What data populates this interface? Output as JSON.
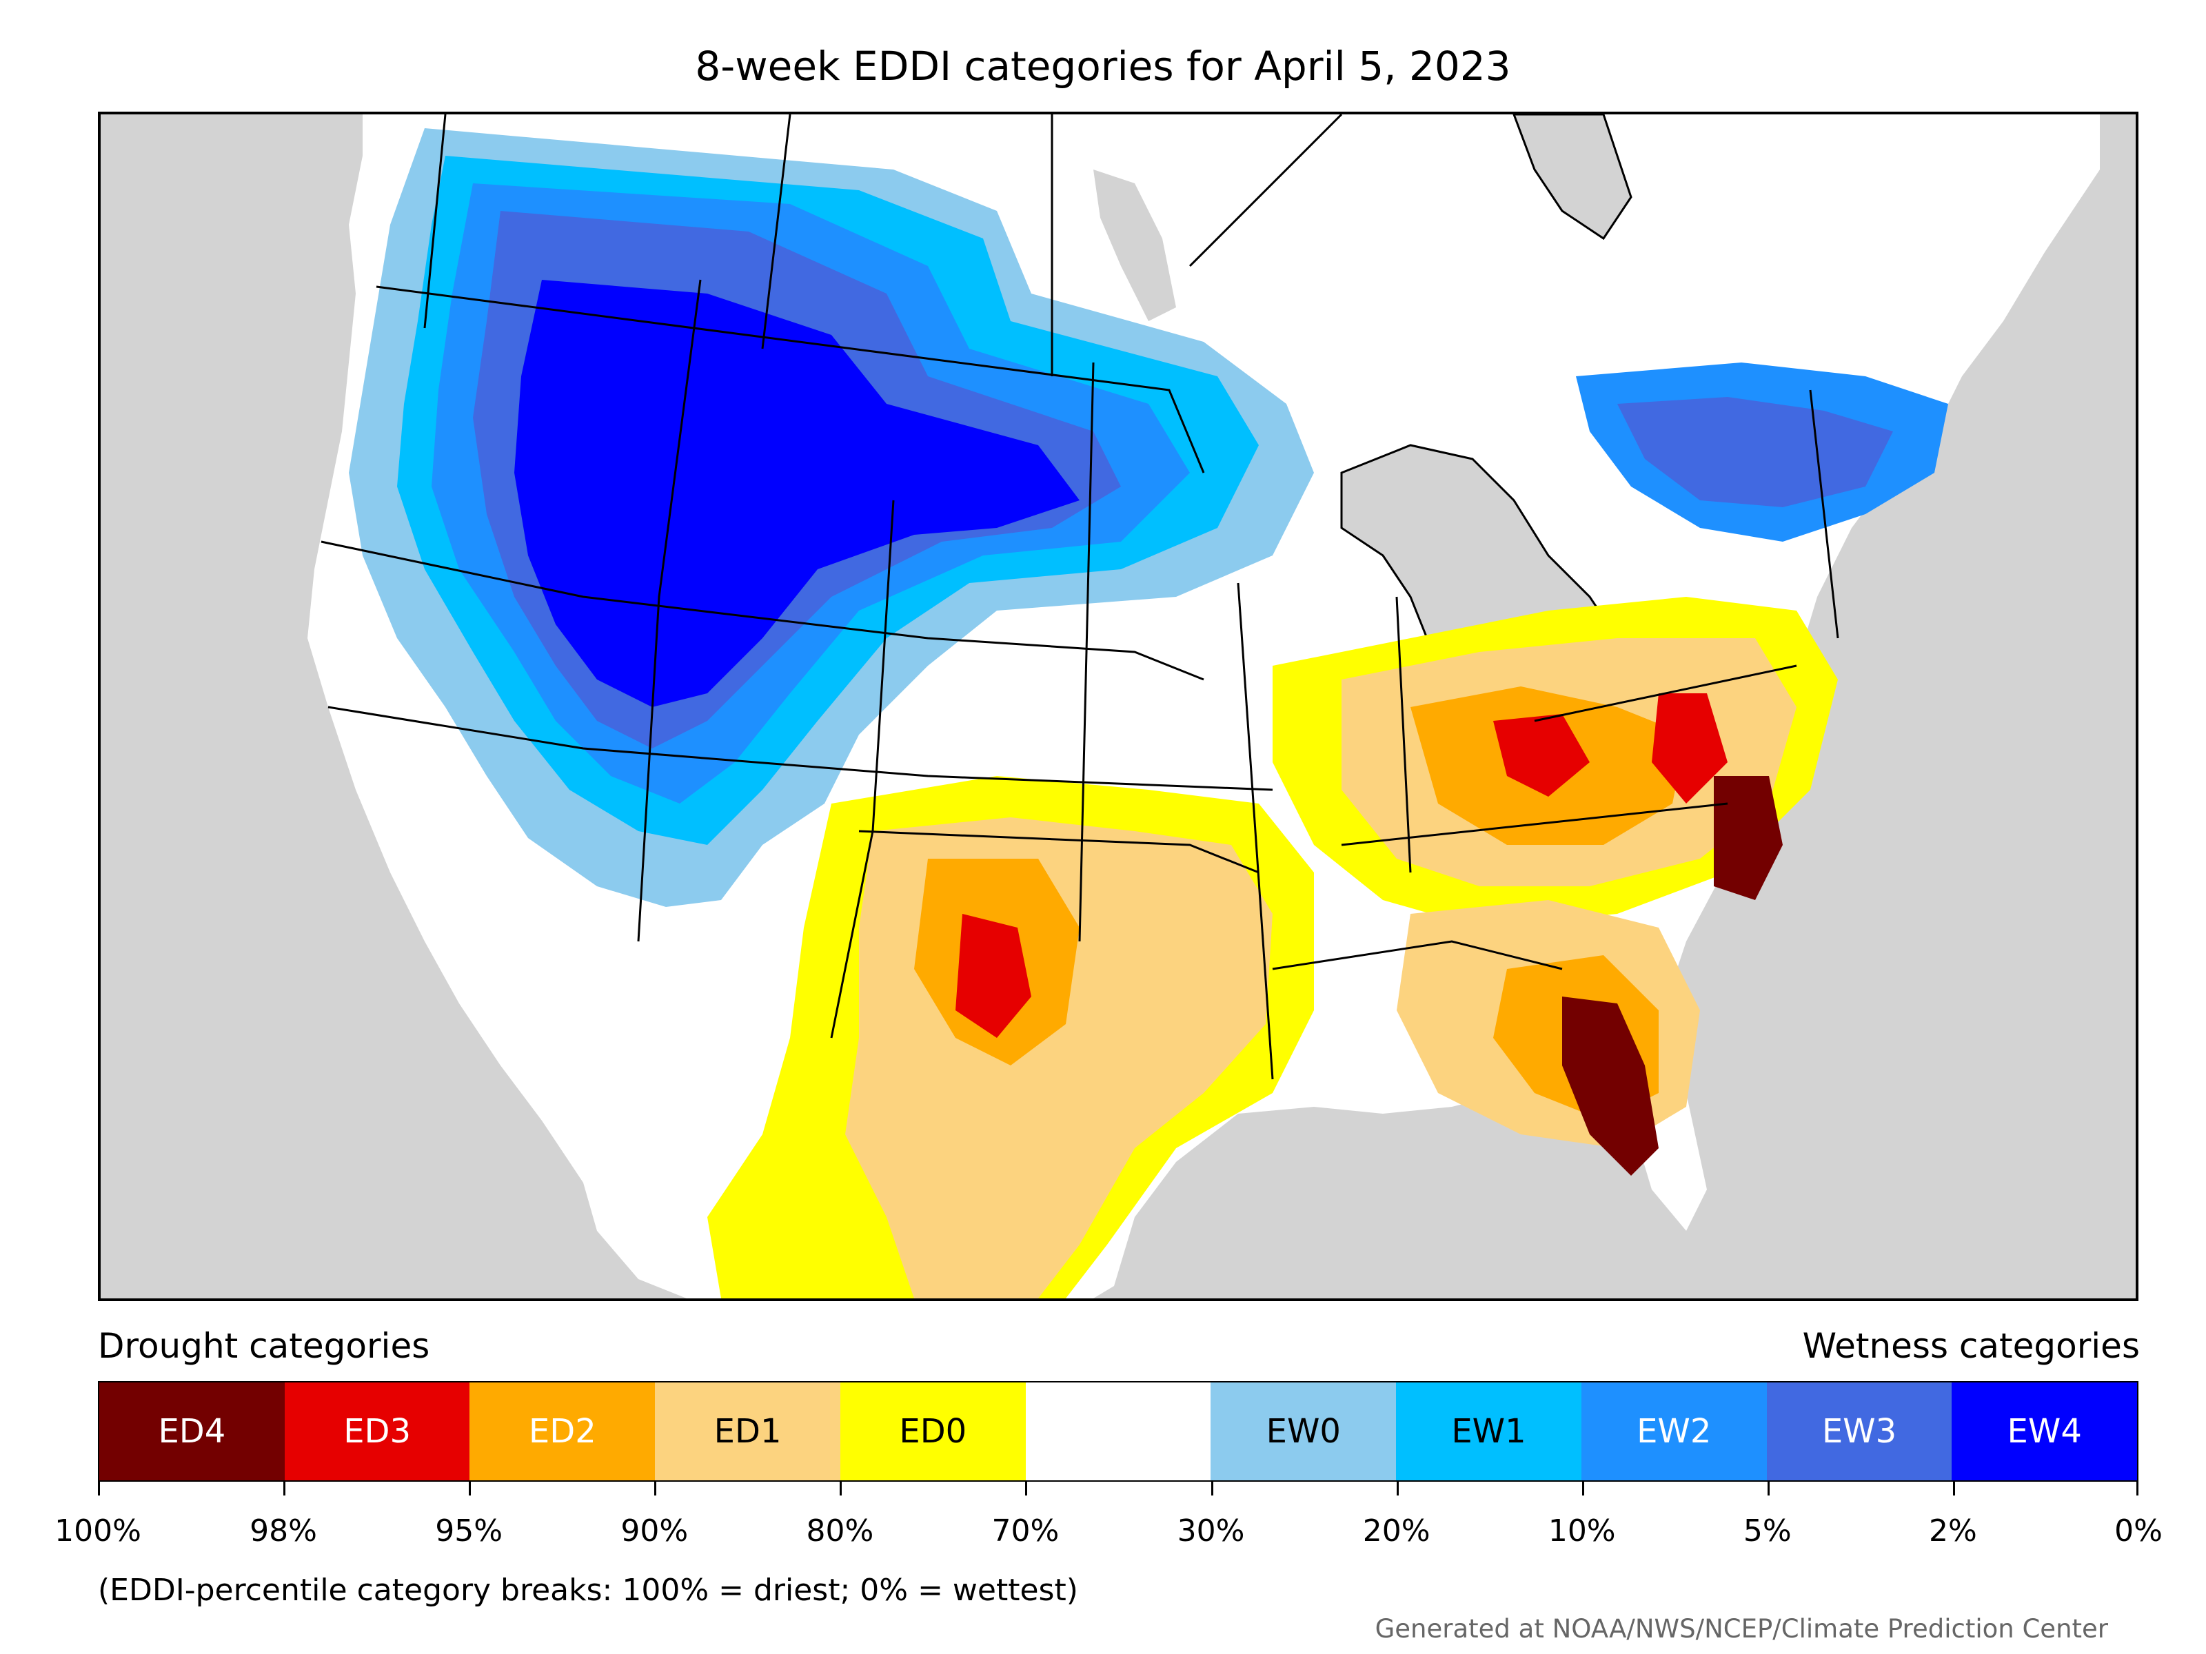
{
  "title": "8-week EDDI categories for April 5, 2023",
  "legend": {
    "left_heading": "Drought categories",
    "right_heading": "Wetness categories",
    "categories": [
      {
        "label": "ED4",
        "color": "#730000",
        "text_color": "#ffffff"
      },
      {
        "label": "ED3",
        "color": "#e60000",
        "text_color": "#ffffff"
      },
      {
        "label": "ED2",
        "color": "#ffaa00",
        "text_color": "#ffffff"
      },
      {
        "label": "ED1",
        "color": "#fcd37f",
        "text_color": "#000000"
      },
      {
        "label": "ED0",
        "color": "#ffff00",
        "text_color": "#000000"
      },
      {
        "label": "",
        "color": "#ffffff",
        "text_color": "#000000"
      },
      {
        "label": "EW0",
        "color": "#8ccbee",
        "text_color": "#000000"
      },
      {
        "label": "EW1",
        "color": "#00bfff",
        "text_color": "#000000"
      },
      {
        "label": "EW2",
        "color": "#1e90ff",
        "text_color": "#ffffff"
      },
      {
        "label": "EW3",
        "color": "#4169e1",
        "text_color": "#ffffff"
      },
      {
        "label": "EW4",
        "color": "#0000ff",
        "text_color": "#ffffff"
      }
    ],
    "breaks": [
      "100%",
      "98%",
      "95%",
      "90%",
      "80%",
      "70%",
      "30%",
      "20%",
      "10%",
      "5%",
      "2%",
      "0%"
    ]
  },
  "footnote": "(EDDI-percentile category breaks: 100% = driest; 0% = wettest)",
  "credit": "Generated at NOAA/NWS/NCEP/Climate Prediction Center",
  "map": {
    "ocean_color": "#d3d3d3",
    "regions": [
      {
        "name": "northwest-wet",
        "category": "EW4"
      },
      {
        "name": "great-basin-wet",
        "category": "EW4"
      },
      {
        "name": "northern-plains-wet",
        "category": "EW4"
      },
      {
        "name": "northeast-wet",
        "category": "EW3"
      },
      {
        "name": "california-wet",
        "category": "EW2"
      },
      {
        "name": "texas-dry",
        "category": "ED1"
      },
      {
        "name": "ohio-valley-dry",
        "category": "ED2"
      },
      {
        "name": "southeast-dry",
        "category": "ED1"
      },
      {
        "name": "florida-extreme-dry",
        "category": "ED4"
      },
      {
        "name": "carolina-extreme-dry",
        "category": "ED4"
      }
    ]
  }
}
